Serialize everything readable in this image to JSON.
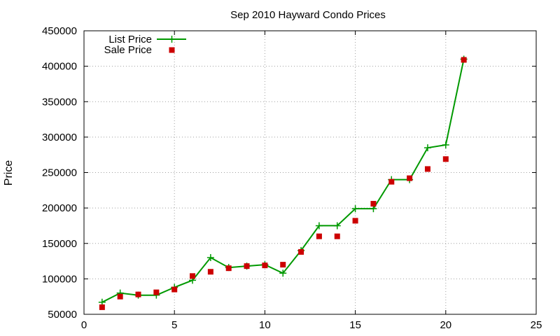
{
  "chart_data": {
    "type": "line",
    "title": "Sep 2010 Hayward Condo Prices",
    "xlabel": "",
    "ylabel": "Price",
    "xlim": [
      0,
      25
    ],
    "ylim": [
      50000,
      450000
    ],
    "x_ticks": [
      0,
      5,
      10,
      15,
      20,
      25
    ],
    "y_ticks": [
      50000,
      100000,
      150000,
      200000,
      250000,
      300000,
      350000,
      400000,
      450000
    ],
    "grid": true,
    "legend_position": "top-left",
    "series": [
      {
        "name": "List Price",
        "style": "line-plus",
        "color": "#009900",
        "x": [
          1,
          2,
          3,
          4,
          5,
          6,
          7,
          8,
          9,
          10,
          11,
          12,
          13,
          14,
          15,
          16,
          17,
          18,
          19,
          20,
          21
        ],
        "y": [
          67000,
          80000,
          77000,
          77000,
          88000,
          98000,
          130000,
          116000,
          118000,
          120000,
          108000,
          140000,
          175000,
          175000,
          199000,
          199000,
          240000,
          240000,
          285000,
          289000,
          410000
        ]
      },
      {
        "name": "Sale Price",
        "style": "square-markers",
        "color": "#cc0000",
        "x": [
          1,
          2,
          3,
          4,
          5,
          6,
          7,
          8,
          9,
          10,
          11,
          12,
          13,
          14,
          15,
          16,
          17,
          18,
          19,
          20,
          21
        ],
        "y": [
          60000,
          75000,
          78000,
          81000,
          85000,
          104000,
          110000,
          115000,
          118000,
          119000,
          120000,
          138000,
          160000,
          160000,
          182000,
          206000,
          237000,
          242000,
          255000,
          269000,
          409000
        ]
      }
    ]
  }
}
